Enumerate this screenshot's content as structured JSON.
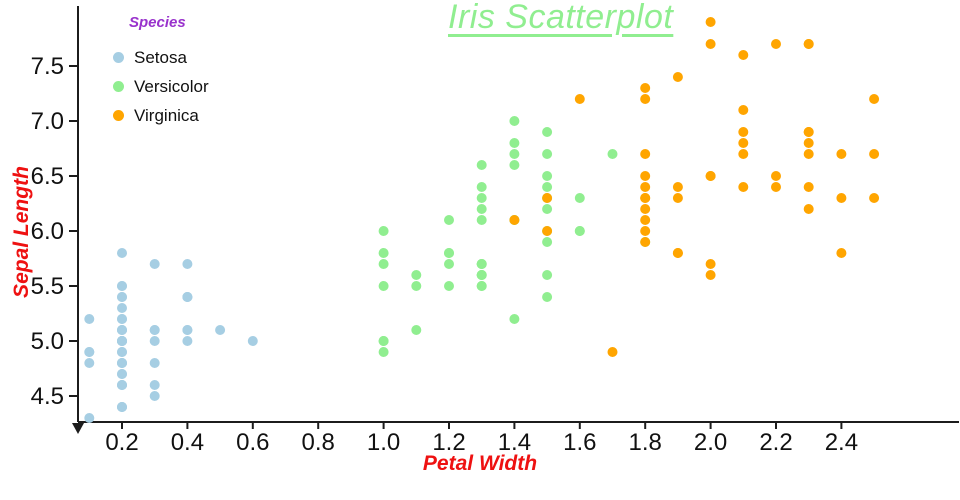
{
  "title": "Iris Scatterplot",
  "legend": {
    "title": "Species",
    "items": [
      {
        "label": "Setosa",
        "color": "#a6cee3"
      },
      {
        "label": "Versicolor",
        "color": "#90ee90"
      },
      {
        "label": "Virginica",
        "color": "#ffa500"
      }
    ]
  },
  "colors": {
    "title": "#90ee90",
    "legend_title": "#9932cc",
    "axis_label": "#ee1111",
    "tick_label": "#111111",
    "axis_line": "#1c1c1c",
    "background": "#ffffff"
  },
  "chart_data": {
    "type": "scatter",
    "title": "Iris Scatterplot",
    "xlabel": "Petal Width",
    "ylabel": "Sepal Length",
    "x_ticks": [
      "0.2",
      "0.4",
      "0.6",
      "0.8",
      "1.0",
      "1.2",
      "1.4",
      "1.6",
      "1.8",
      "2.0",
      "2.2",
      "2.4"
    ],
    "y_ticks": [
      "4.5",
      "5.0",
      "5.5",
      "6.0",
      "6.5",
      "7.0",
      "7.5"
    ],
    "xlim": [
      0.06,
      2.77
    ],
    "ylim": [
      4.26,
      8.12
    ],
    "grid": false,
    "legend_position": "top-left",
    "marker_radius": 5,
    "series": [
      {
        "name": "Setosa",
        "color": "#a6cee3",
        "points": [
          [
            0.2,
            5.1
          ],
          [
            0.2,
            4.9
          ],
          [
            0.2,
            4.7
          ],
          [
            0.2,
            4.6
          ],
          [
            0.2,
            5.0
          ],
          [
            0.4,
            5.4
          ],
          [
            0.3,
            4.6
          ],
          [
            0.2,
            5.0
          ],
          [
            0.2,
            4.4
          ],
          [
            0.1,
            4.9
          ],
          [
            0.2,
            5.4
          ],
          [
            0.2,
            4.8
          ],
          [
            0.1,
            4.8
          ],
          [
            0.1,
            4.3
          ],
          [
            0.2,
            5.8
          ],
          [
            0.4,
            5.7
          ],
          [
            0.4,
            5.4
          ],
          [
            0.3,
            5.1
          ],
          [
            0.3,
            5.7
          ],
          [
            0.3,
            5.1
          ],
          [
            0.2,
            5.4
          ],
          [
            0.4,
            5.1
          ],
          [
            0.2,
            4.6
          ],
          [
            0.5,
            5.1
          ],
          [
            0.2,
            4.8
          ],
          [
            0.2,
            5.0
          ],
          [
            0.4,
            5.0
          ],
          [
            0.2,
            5.2
          ],
          [
            0.2,
            5.2
          ],
          [
            0.2,
            4.7
          ],
          [
            0.2,
            4.8
          ],
          [
            0.4,
            5.4
          ],
          [
            0.1,
            5.2
          ],
          [
            0.2,
            5.5
          ],
          [
            0.2,
            4.9
          ],
          [
            0.2,
            5.0
          ],
          [
            0.2,
            5.5
          ],
          [
            0.1,
            4.9
          ],
          [
            0.2,
            4.4
          ],
          [
            0.2,
            5.1
          ],
          [
            0.3,
            5.0
          ],
          [
            0.3,
            4.5
          ],
          [
            0.2,
            4.4
          ],
          [
            0.6,
            5.0
          ],
          [
            0.4,
            5.1
          ],
          [
            0.3,
            4.8
          ],
          [
            0.2,
            5.1
          ],
          [
            0.2,
            4.6
          ],
          [
            0.2,
            5.3
          ],
          [
            0.2,
            5.0
          ]
        ]
      },
      {
        "name": "Versicolor",
        "color": "#90ee90",
        "points": [
          [
            1.4,
            7.0
          ],
          [
            1.5,
            6.4
          ],
          [
            1.5,
            6.9
          ],
          [
            1.3,
            5.5
          ],
          [
            1.5,
            6.5
          ],
          [
            1.3,
            5.7
          ],
          [
            1.6,
            6.3
          ],
          [
            1.0,
            4.9
          ],
          [
            1.3,
            6.6
          ],
          [
            1.4,
            5.2
          ],
          [
            1.0,
            5.0
          ],
          [
            1.5,
            5.9
          ],
          [
            1.0,
            6.0
          ],
          [
            1.4,
            6.1
          ],
          [
            1.3,
            5.6
          ],
          [
            1.4,
            6.7
          ],
          [
            1.5,
            5.6
          ],
          [
            1.0,
            5.8
          ],
          [
            1.5,
            6.2
          ],
          [
            1.1,
            5.6
          ],
          [
            1.8,
            5.9
          ],
          [
            1.3,
            6.1
          ],
          [
            1.5,
            6.3
          ],
          [
            1.2,
            6.1
          ],
          [
            1.3,
            6.4
          ],
          [
            1.4,
            6.6
          ],
          [
            1.4,
            6.8
          ],
          [
            1.7,
            6.7
          ],
          [
            1.5,
            6.0
          ],
          [
            1.0,
            5.7
          ],
          [
            1.1,
            5.5
          ],
          [
            1.0,
            5.5
          ],
          [
            1.2,
            5.8
          ],
          [
            1.6,
            6.0
          ],
          [
            1.5,
            5.4
          ],
          [
            1.6,
            6.0
          ],
          [
            1.5,
            6.7
          ],
          [
            1.3,
            6.3
          ],
          [
            1.3,
            5.6
          ],
          [
            1.3,
            5.5
          ],
          [
            1.2,
            5.5
          ],
          [
            1.4,
            6.1
          ],
          [
            1.2,
            5.8
          ],
          [
            1.0,
            5.0
          ],
          [
            1.3,
            5.6
          ],
          [
            1.2,
            5.7
          ],
          [
            1.3,
            5.7
          ],
          [
            1.3,
            6.2
          ],
          [
            1.1,
            5.1
          ],
          [
            1.3,
            5.7
          ]
        ]
      },
      {
        "name": "Virginica",
        "color": "#ffa500",
        "points": [
          [
            2.5,
            6.3
          ],
          [
            1.9,
            5.8
          ],
          [
            2.1,
            7.1
          ],
          [
            1.8,
            6.3
          ],
          [
            2.2,
            6.5
          ],
          [
            2.1,
            7.6
          ],
          [
            1.7,
            4.9
          ],
          [
            1.8,
            7.3
          ],
          [
            1.8,
            6.7
          ],
          [
            2.5,
            7.2
          ],
          [
            2.0,
            6.5
          ],
          [
            1.9,
            6.4
          ],
          [
            2.1,
            6.8
          ],
          [
            2.0,
            5.7
          ],
          [
            2.4,
            5.8
          ],
          [
            2.3,
            6.4
          ],
          [
            1.8,
            6.5
          ],
          [
            2.2,
            7.7
          ],
          [
            2.3,
            7.7
          ],
          [
            1.5,
            6.0
          ],
          [
            2.3,
            6.9
          ],
          [
            2.0,
            5.6
          ],
          [
            2.0,
            7.7
          ],
          [
            1.8,
            6.3
          ],
          [
            2.1,
            6.7
          ],
          [
            1.8,
            7.2
          ],
          [
            1.8,
            6.2
          ],
          [
            1.8,
            6.1
          ],
          [
            2.1,
            6.4
          ],
          [
            1.6,
            7.2
          ],
          [
            1.9,
            7.4
          ],
          [
            2.0,
            7.9
          ],
          [
            2.2,
            6.4
          ],
          [
            1.5,
            6.3
          ],
          [
            1.4,
            6.1
          ],
          [
            2.3,
            7.7
          ],
          [
            2.4,
            6.3
          ],
          [
            1.8,
            6.4
          ],
          [
            1.8,
            6.0
          ],
          [
            2.1,
            6.9
          ],
          [
            2.4,
            6.7
          ],
          [
            2.3,
            6.9
          ],
          [
            1.9,
            5.8
          ],
          [
            2.3,
            6.8
          ],
          [
            2.5,
            6.7
          ],
          [
            2.3,
            6.7
          ],
          [
            1.9,
            6.3
          ],
          [
            2.0,
            6.5
          ],
          [
            2.3,
            6.2
          ],
          [
            1.8,
            5.9
          ]
        ]
      }
    ]
  }
}
